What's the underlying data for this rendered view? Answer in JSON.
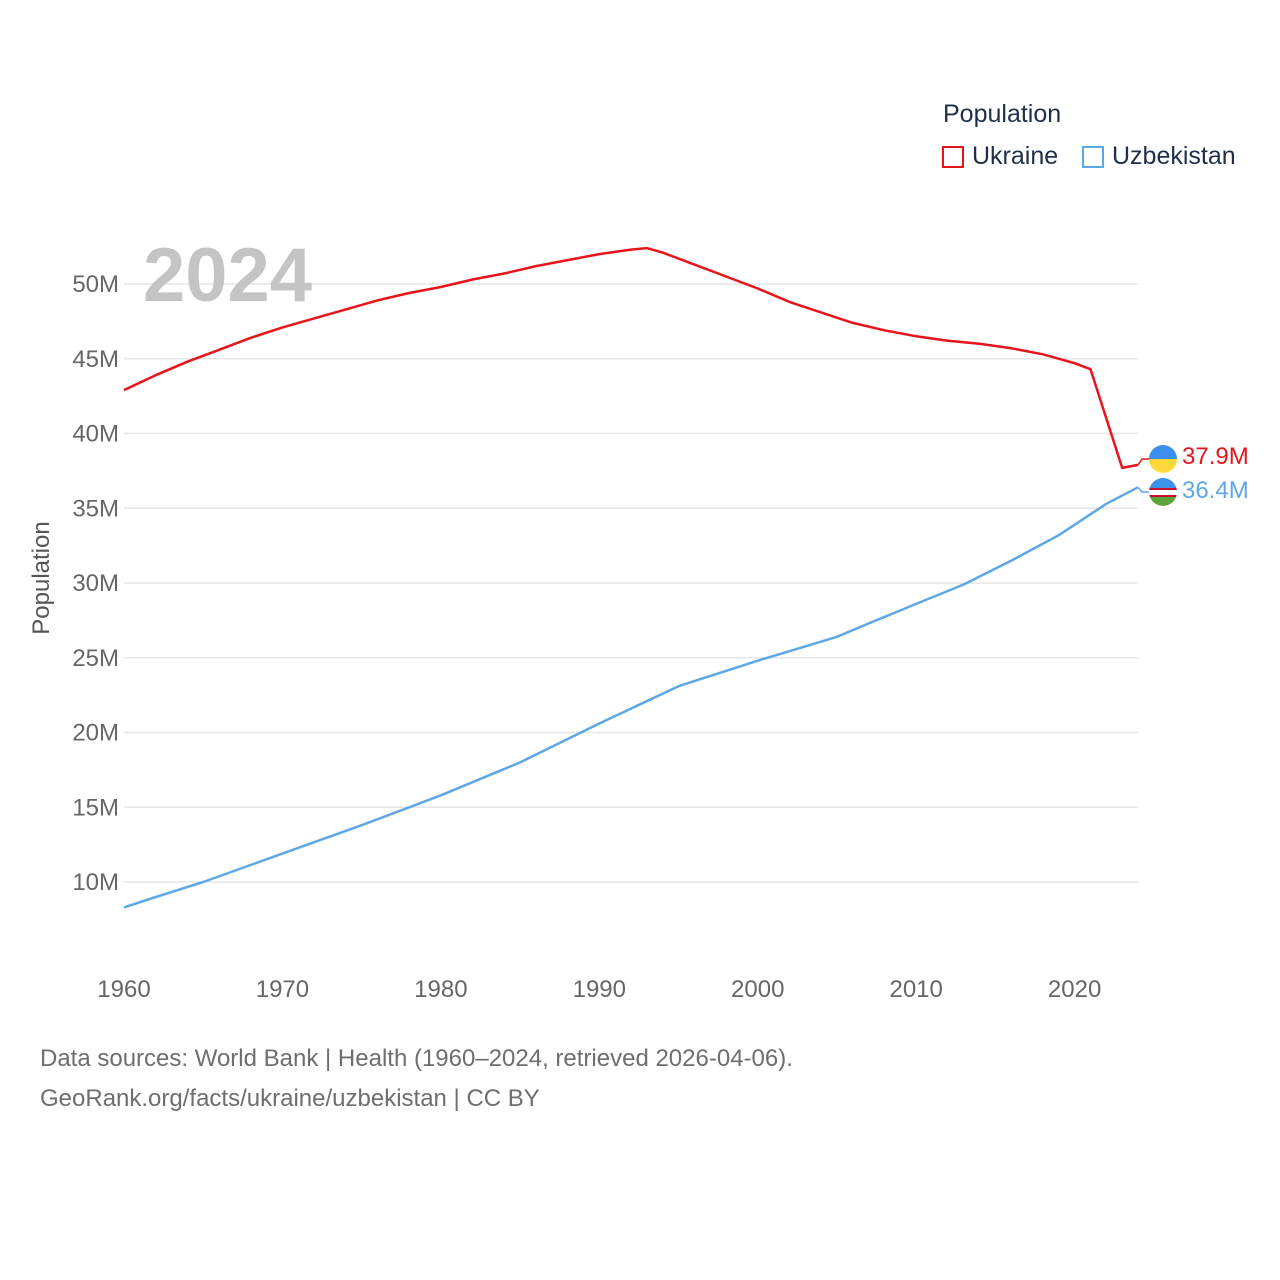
{
  "legend": {
    "title": "Population",
    "items": [
      {
        "name": "Ukraine",
        "color": "#e8141b"
      },
      {
        "name": "Uzbekistan",
        "color": "#5ea7e6"
      }
    ]
  },
  "year_overlay": "2024",
  "end_labels": [
    {
      "country": "Ukraine",
      "text": "37.9M",
      "color": "#e8141b",
      "flag": "ukraine-flag-icon"
    },
    {
      "country": "Uzbekistan",
      "text": "36.4M",
      "color": "#5ea7e6",
      "flag": "uzbekistan-flag-icon"
    }
  ],
  "footer": {
    "line1": "Data sources: World Bank | Health (1960–2024, retrieved 2026-04-06).",
    "line2": "GeoRank.org/facts/ukraine/uzbekistan | CC BY"
  },
  "chart_data": {
    "type": "line",
    "ylabel": "Population",
    "xlabel": "",
    "xlim": [
      1960,
      2024
    ],
    "ylim": [
      6000000,
      53500000
    ],
    "y_ticks": [
      10000000,
      15000000,
      20000000,
      25000000,
      30000000,
      35000000,
      40000000,
      45000000,
      50000000
    ],
    "y_tick_labels": [
      "10M",
      "15M",
      "20M",
      "25M",
      "30M",
      "35M",
      "40M",
      "45M",
      "50M"
    ],
    "x_ticks": [
      1960,
      1970,
      1980,
      1990,
      2000,
      2010,
      2020
    ],
    "x_tick_labels": [
      "1960",
      "1970",
      "1980",
      "1990",
      "2000",
      "2010",
      "2020"
    ],
    "grid": true,
    "series": [
      {
        "name": "Ukraine",
        "color": "#e8141b",
        "points": [
          [
            1960,
            42900000
          ],
          [
            1962,
            43900000
          ],
          [
            1964,
            44800000
          ],
          [
            1966,
            45600000
          ],
          [
            1968,
            46400000
          ],
          [
            1970,
            47100000
          ],
          [
            1972,
            47700000
          ],
          [
            1974,
            48300000
          ],
          [
            1976,
            48900000
          ],
          [
            1978,
            49400000
          ],
          [
            1980,
            49800000
          ],
          [
            1982,
            50300000
          ],
          [
            1984,
            50700000
          ],
          [
            1986,
            51200000
          ],
          [
            1988,
            51600000
          ],
          [
            1990,
            52000000
          ],
          [
            1992,
            52300000
          ],
          [
            1993,
            52400000
          ],
          [
            1994,
            52100000
          ],
          [
            1996,
            51300000
          ],
          [
            1998,
            50500000
          ],
          [
            2000,
            49700000
          ],
          [
            2002,
            48800000
          ],
          [
            2004,
            48100000
          ],
          [
            2006,
            47400000
          ],
          [
            2008,
            46900000
          ],
          [
            2010,
            46500000
          ],
          [
            2012,
            46200000
          ],
          [
            2014,
            46000000
          ],
          [
            2016,
            45700000
          ],
          [
            2018,
            45300000
          ],
          [
            2020,
            44700000
          ],
          [
            2021,
            44300000
          ],
          [
            2023,
            37700000
          ],
          [
            2024,
            37900000
          ]
        ]
      },
      {
        "name": "Uzbekistan",
        "color": "#5ea7e6",
        "points": [
          [
            1960,
            8300000
          ],
          [
            1962,
            9000000
          ],
          [
            1965,
            10000000
          ],
          [
            1970,
            11900000
          ],
          [
            1975,
            13800000
          ],
          [
            1980,
            15800000
          ],
          [
            1985,
            18000000
          ],
          [
            1990,
            20600000
          ],
          [
            1995,
            23100000
          ],
          [
            2000,
            24800000
          ],
          [
            2005,
            26400000
          ],
          [
            2007,
            27300000
          ],
          [
            2010,
            28600000
          ],
          [
            2013,
            29900000
          ],
          [
            2016,
            31500000
          ],
          [
            2019,
            33200000
          ],
          [
            2022,
            35300000
          ],
          [
            2024,
            36400000
          ]
        ]
      }
    ]
  }
}
